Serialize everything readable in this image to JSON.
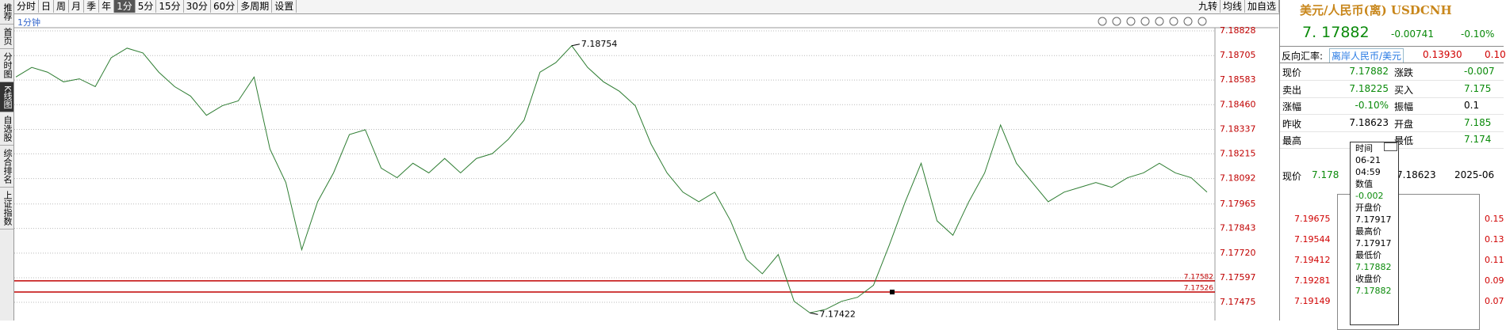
{
  "sidebar": [
    "推荐",
    "首页",
    "分时图",
    "K线图",
    "自选股",
    "综合排名",
    "上证指数"
  ],
  "toolbar": {
    "periods": [
      "分时",
      "日",
      "周",
      "月",
      "季",
      "年",
      "1分",
      "5分",
      "15分",
      "30分",
      "60分",
      "多周期",
      "设置"
    ],
    "tools": [
      "九转",
      "均线",
      "加自选"
    ]
  },
  "chart_label": "1分钟",
  "chart_data": {
    "type": "line",
    "series": [
      {
        "color": "#2e7d32",
        "values": [
          7.18598,
          7.18646,
          7.18622,
          7.18574,
          7.18589,
          7.1855,
          7.18694,
          7.18742,
          7.18718,
          7.18622,
          7.1855,
          7.18503,
          7.18407,
          7.18455,
          7.18479,
          7.18598,
          7.18239,
          7.18072,
          7.17737,
          7.17976,
          7.1812,
          7.18311,
          7.18335,
          7.18144,
          7.18096,
          7.18168,
          7.1812,
          7.18192,
          7.1812,
          7.18192,
          7.18216,
          7.18287,
          7.18383,
          7.18622,
          7.1867,
          7.18754,
          7.18646,
          7.18574,
          7.18527,
          7.18455,
          7.18263,
          7.1812,
          7.18024,
          7.17976,
          7.18024,
          7.17881,
          7.17689,
          7.17617,
          7.17713,
          7.1748,
          7.17422,
          7.1744,
          7.1748,
          7.175,
          7.1756,
          7.17761,
          7.17976,
          7.18168,
          7.17881,
          7.17809,
          7.17976,
          7.1812,
          7.18359,
          7.18168,
          7.18072,
          7.17976,
          7.18024,
          7.18048,
          7.18072,
          7.18048,
          7.18096,
          7.1812,
          7.18168,
          7.1812,
          7.18096,
          7.18024
        ]
      }
    ],
    "ylim": [
      7.17384,
      7.1884
    ],
    "yticks": [
      7.18828,
      7.18705,
      7.18583,
      {
        "value": 7.1846,
        "label": "7.18460"
      },
      7.18337,
      7.18215,
      7.18092,
      7.17965,
      7.17843,
      {
        "value": 7.1772,
        "label": "7.17720"
      },
      7.17597,
      7.17475
    ],
    "grid": true,
    "reference_lines": [
      {
        "value": 7.17582,
        "color": "#c00000"
      },
      {
        "value": 7.17526,
        "color": "#c00000"
      }
    ]
  },
  "quote": {
    "title": "美元/人民币(离) USDCNH",
    "price": "7. 17882",
    "change": "-0.00741",
    "change_pct": "-0.10%",
    "reverse_label": "反向汇率:",
    "reverse_pair": "离岸人民币/美元",
    "reverse_price": "0.13930",
    "reverse_change": "0.10",
    "rows": [
      [
        "现价",
        "7.17882",
        "涨跌",
        "-0.007"
      ],
      [
        "卖出",
        "7.18225",
        "买入",
        "7.175"
      ],
      [
        "涨幅",
        "-0.10%",
        "振幅",
        "0.1"
      ],
      [
        "昨收",
        "7.18623",
        "开盘",
        "7.185"
      ],
      [
        "最高",
        "",
        "最低",
        "7.174"
      ]
    ],
    "mini": {
      "header": [
        "现价",
        "7.178",
        "7.18623",
        "2025-06"
      ],
      "left_labels": [
        "7.19675",
        "7.19544",
        "7.19412",
        "7.19281",
        "7.19149"
      ],
      "right_labels": [
        "0.15",
        "0.13",
        "0.11",
        "0.09",
        "0.07"
      ]
    },
    "tooltip": [
      "时间",
      "06-21",
      "04:59",
      "数值",
      "-0.002",
      "开盘价",
      "7.17917",
      "最高价",
      "7.17917",
      "最低价",
      "7.17882",
      "收盘价",
      "7.17882"
    ]
  }
}
